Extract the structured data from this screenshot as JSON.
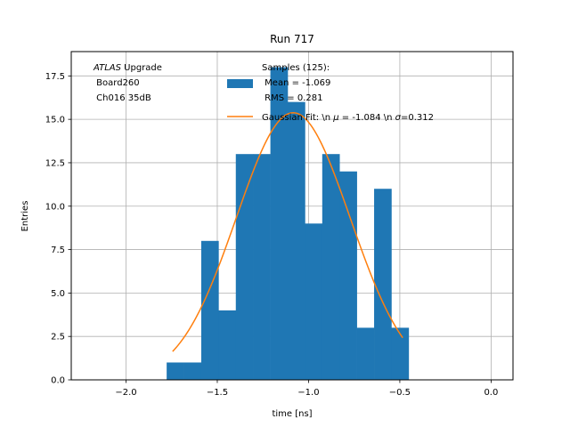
{
  "chart_data": {
    "type": "bar",
    "title": "Run 717",
    "xlabel": "time [ns]",
    "ylabel": "Entries",
    "xlim": [
      -2.3,
      0.12
    ],
    "ylim": [
      0,
      18.9
    ],
    "xticks": [
      -2.0,
      -1.5,
      -1.0,
      -0.5,
      0.0
    ],
    "xtick_labels": [
      "−2.0",
      "−1.5",
      "−1.0",
      "−0.5",
      "0.0"
    ],
    "yticks": [
      0.0,
      2.5,
      5.0,
      7.5,
      10.0,
      12.5,
      15.0,
      17.5
    ],
    "ytick_labels": [
      "0.0",
      "2.5",
      "5.0",
      "7.5",
      "10.0",
      "12.5",
      "15.0",
      "17.5"
    ],
    "grid": true,
    "annotation": {
      "italic": "ATLAS",
      "rest": " Upgrade",
      "line2": " Board260",
      "line3": " Ch016 35dB"
    },
    "histogram": {
      "name_lines": [
        "Samples (125):",
        " Mean = -1.069",
        " RMS = 0.281"
      ],
      "color": "#1f77b4",
      "bin_edges": [
        -1.7773,
        -1.6826,
        -1.5879,
        -1.4932,
        -1.3985,
        -1.3038,
        -1.2091,
        -1.1144,
        -1.0197,
        -0.925,
        -0.8303,
        -0.7356,
        -0.6409,
        -0.5462,
        -0.4515
      ],
      "counts": [
        1,
        1,
        8,
        4,
        13,
        13,
        18,
        16,
        9,
        13,
        12,
        3,
        11,
        3
      ]
    },
    "fit": {
      "name": "Gaussian Fit: \\n $\\mu$ = -1.084 \\n $\\sigma$=0.312",
      "legend_parts": [
        "Gaussian Fit: \\n ",
        "μ",
        " = -1.084 \\n ",
        "σ",
        "=0.312"
      ],
      "color": "#ff7f0e",
      "amplitude": 15.38,
      "mean": -1.084,
      "sigma": 0.312,
      "x_range": [
        -1.7447,
        -0.4842
      ]
    },
    "legend_position": "upper center"
  }
}
